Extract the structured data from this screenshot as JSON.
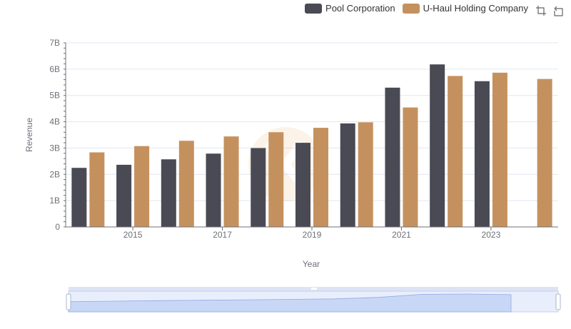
{
  "legend": [
    {
      "name": "Pool Corporation",
      "color": "#4a4a55"
    },
    {
      "name": "U-Haul Holding Company",
      "color": "#c4915e"
    }
  ],
  "toolbox": [
    {
      "icon": "zoom-icon",
      "title": "Zoom"
    },
    {
      "icon": "restore-icon",
      "title": "Restore"
    }
  ],
  "chart_data": {
    "type": "bar",
    "xlabel": "Year",
    "ylabel": "Revenue",
    "categories": [
      "2014",
      "2015",
      "2016",
      "2017",
      "2018",
      "2019",
      "2020",
      "2021",
      "2022",
      "2023",
      "2024"
    ],
    "x_tick_labels": [
      "2015",
      "2017",
      "2019",
      "2021",
      "2023"
    ],
    "y_tick_labels": [
      "0",
      "1B",
      "2B",
      "3B",
      "4B",
      "5B",
      "6B",
      "7B"
    ],
    "ylim": [
      0,
      7000000000
    ],
    "grid": true,
    "legend_position": "top-right",
    "series": [
      {
        "name": "Pool Corporation",
        "color": "#4a4a55",
        "values": [
          2246562000,
          2363139000,
          2570803000,
          2788188000,
          2998097000,
          3199517000,
          3936623000,
          5295584000,
          6179727000,
          5541595000,
          null
        ]
      },
      {
        "name": "U-Haul Holding Company",
        "color": "#c4915e",
        "values": [
          2835252000,
          3074531000,
          3275710000,
          3441452000,
          3601114000,
          3768707000,
          3978868000,
          4542105000,
          5739747000,
          5864691000,
          5625674000
        ]
      }
    ],
    "data_zoom": {
      "start": 0,
      "end": 100
    }
  }
}
